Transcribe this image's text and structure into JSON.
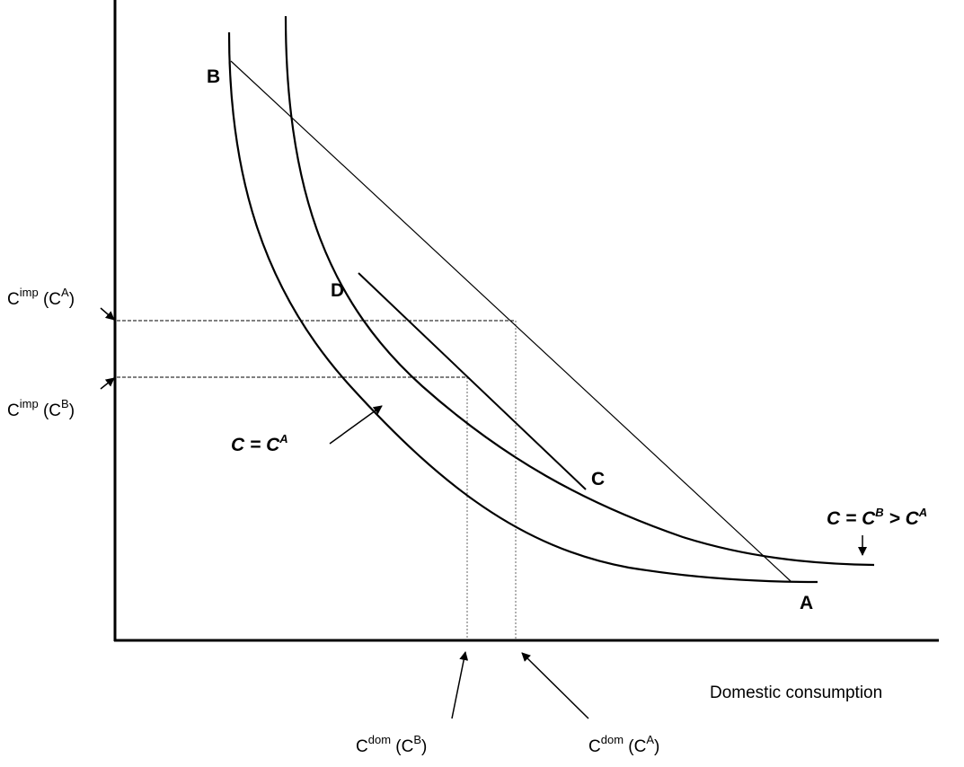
{
  "axis": {
    "x_label": "Domestic consumption"
  },
  "points": {
    "A": "A",
    "B": "B",
    "C": "C",
    "D": "D"
  },
  "curves": {
    "inner": {
      "lhs": "C",
      "eq": " = ",
      "rhs": "C",
      "rhs_sup": "A"
    },
    "outer": {
      "lhs": "C",
      "eq": " = ",
      "mid": "C",
      "mid_sup": "B",
      "gt": " > ",
      "rhs": "C",
      "rhs_sup": "A"
    }
  },
  "y_ticks": {
    "cimp_a": {
      "base": "C",
      "sup": "imp",
      "paren_open": " (C",
      "paren_sup": "A",
      "paren_close": ")"
    },
    "cimp_b": {
      "base": "C",
      "sup": "imp",
      "paren_open": " (C",
      "paren_sup": "B",
      "paren_close": ")"
    }
  },
  "x_ticks": {
    "cdom_b": {
      "base": "C",
      "sup": "dom",
      "paren_open": " (C",
      "paren_sup": "B",
      "paren_close": ")"
    },
    "cdom_a": {
      "base": "C",
      "sup": "dom",
      "paren_open": " (C",
      "paren_sup": "A",
      "paren_close": ")"
    }
  }
}
